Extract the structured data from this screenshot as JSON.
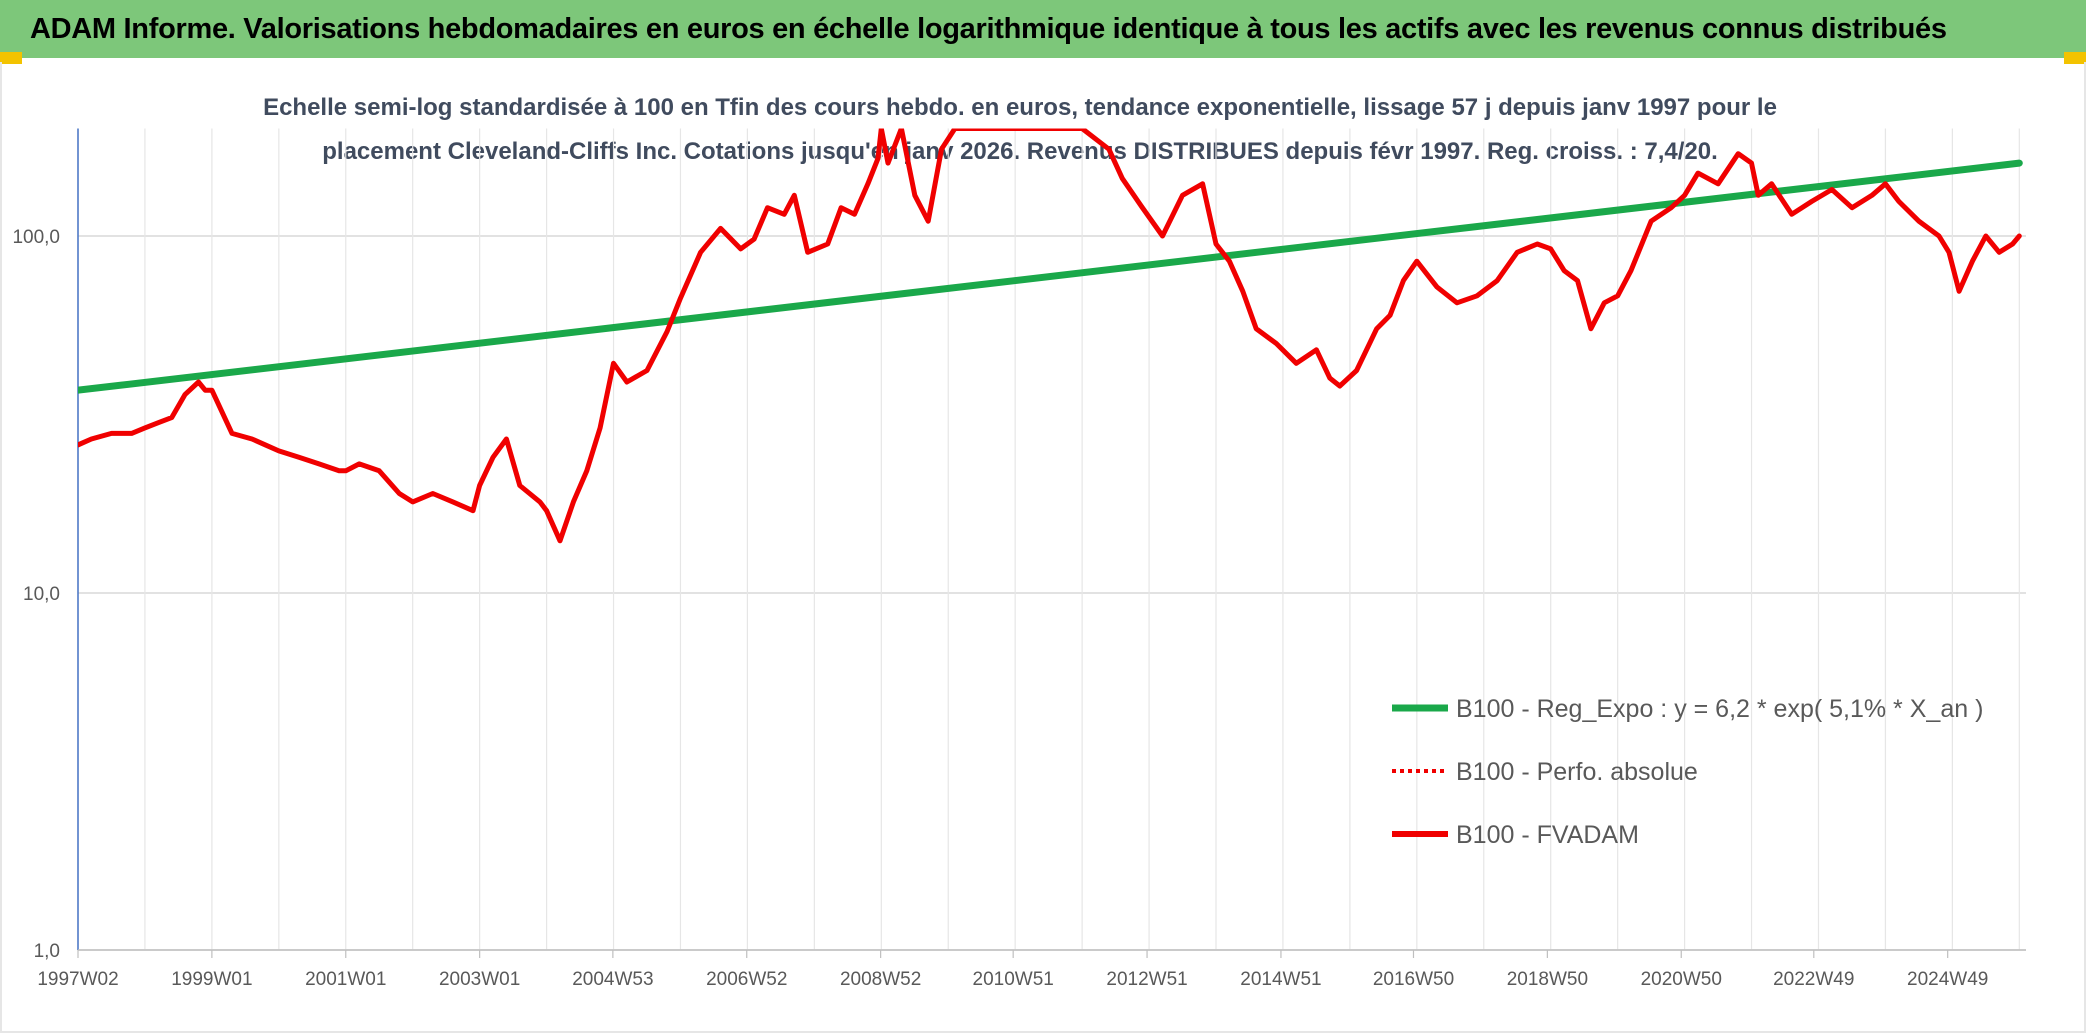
{
  "header": {
    "title": "ADAM Informe. Valorisations hebdomadaires en euros en échelle logarithmique identique à tous les actifs avec les revenus connus distribués"
  },
  "colors": {
    "header_bg": "#7dc77a",
    "accent_corner": "#f3c300",
    "trend": "#1aa84a",
    "fvadam": "#f00000",
    "grid": "#d9d9d9"
  },
  "chart_data": {
    "type": "line",
    "title_line1": "Echelle semi-log standardisée à 100 en Tfin des cours hebdo. en euros, tendance exponentielle, lissage 57 j depuis janv 1997 pour le",
    "title_line2": "placement Cleveland-Cliffs Inc. Cotations jusqu'en janv 2026. Revenus DISTRIBUES depuis févr 1997. Reg. croiss. : 7,4/20.",
    "y_scale": "log",
    "ylim": [
      1,
      200
    ],
    "xlim": [
      1997.0,
      2026.1
    ],
    "y_ticks": [
      {
        "value": 1,
        "label": "1,0"
      },
      {
        "value": 10,
        "label": "10,0"
      },
      {
        "value": 100,
        "label": "100,0"
      }
    ],
    "x_ticks": [
      {
        "value": 1997.0,
        "label": "1997W02"
      },
      {
        "value": 1999.0,
        "label": "1999W01"
      },
      {
        "value": 2001.0,
        "label": "2001W01"
      },
      {
        "value": 2003.0,
        "label": "2003W01"
      },
      {
        "value": 2004.99,
        "label": "2004W53"
      },
      {
        "value": 2006.99,
        "label": "2006W52"
      },
      {
        "value": 2008.99,
        "label": "2008W52"
      },
      {
        "value": 2010.97,
        "label": "2010W51"
      },
      {
        "value": 2012.97,
        "label": "2012W51"
      },
      {
        "value": 2014.97,
        "label": "2014W51"
      },
      {
        "value": 2016.95,
        "label": "2016W50"
      },
      {
        "value": 2018.95,
        "label": "2018W50"
      },
      {
        "value": 2020.95,
        "label": "2020W50"
      },
      {
        "value": 2022.93,
        "label": "2022W49"
      },
      {
        "value": 2024.93,
        "label": "2024W49"
      }
    ],
    "grid": true,
    "legend_position": "bottom-right",
    "legend": [
      {
        "key": "trend",
        "label": "B100 - Reg_Expo : y = 6,2 * exp( 5,1% *  X_an )",
        "style": "solid-green"
      },
      {
        "key": "perfo",
        "label": "B100 - Perfo. absolue",
        "style": "dotted-red"
      },
      {
        "key": "fvadam",
        "label": "B100 - FVADAM",
        "style": "solid-red"
      }
    ],
    "series": [
      {
        "key": "trend",
        "name": "B100 - Reg_Expo : y = 6,2 * exp( 5,1% *  X_an )",
        "x": [
          1997.0,
          2026.0
        ],
        "values": [
          37,
          160
        ]
      },
      {
        "key": "fvadam",
        "name": "B100 - FVADAM",
        "x": [
          1997.0,
          1997.2,
          1997.5,
          1997.8,
          1998.0,
          1998.2,
          1998.4,
          1998.6,
          1998.8,
          1998.9,
          1999.0,
          1999.3,
          1999.6,
          1999.8,
          2000.0,
          2000.3,
          2000.6,
          2000.9,
          2001.0,
          2001.2,
          2001.5,
          2001.8,
          2002.0,
          2002.3,
          2002.6,
          2002.9,
          2003.0,
          2003.2,
          2003.4,
          2003.6,
          2003.9,
          2004.0,
          2004.2,
          2004.4,
          2004.6,
          2004.8,
          2005.0,
          2005.2,
          2005.5,
          2005.8,
          2006.0,
          2006.3,
          2006.6,
          2006.9,
          2007.1,
          2007.3,
          2007.55,
          2007.7,
          2007.9,
          2008.2,
          2008.4,
          2008.6,
          2008.8,
          2008.95,
          2009.0,
          2009.1,
          2009.3,
          2009.5,
          2009.7,
          2009.9,
          2010.1,
          2011.5,
          2012.0,
          2012.4,
          2012.6,
          2012.9,
          2013.2,
          2013.5,
          2013.8,
          2014.0,
          2014.2,
          2014.4,
          2014.6,
          2014.9,
          2015.2,
          2015.5,
          2015.7,
          2015.85,
          2016.1,
          2016.4,
          2016.6,
          2016.8,
          2017.0,
          2017.3,
          2017.6,
          2017.9,
          2018.2,
          2018.5,
          2018.8,
          2019.0,
          2019.2,
          2019.4,
          2019.6,
          2019.8,
          2020.0,
          2020.2,
          2020.5,
          2020.8,
          2021.0,
          2021.2,
          2021.5,
          2021.8,
          2022.0,
          2022.1,
          2022.3,
          2022.6,
          2022.9,
          2023.2,
          2023.5,
          2023.8,
          2024.0,
          2024.2,
          2024.5,
          2024.8,
          2024.95,
          2025.1,
          2025.3,
          2025.5,
          2025.7,
          2025.9,
          2026.0
        ],
        "values": [
          26,
          27,
          28,
          28,
          29,
          30,
          31,
          36,
          39,
          37,
          37,
          28,
          27,
          26,
          25,
          24,
          23,
          22,
          22,
          23,
          22,
          19,
          18,
          19,
          18,
          17,
          20,
          24,
          27,
          20,
          18,
          17,
          14,
          18,
          22,
          29,
          44,
          39,
          42,
          54,
          67,
          90,
          105,
          92,
          98,
          120,
          115,
          130,
          90,
          95,
          120,
          115,
          140,
          165,
          200,
          160,
          200,
          130,
          110,
          175,
          200,
          200,
          200,
          175,
          145,
          120,
          100,
          130,
          140,
          95,
          85,
          70,
          55,
          50,
          44,
          48,
          40,
          38,
          42,
          55,
          60,
          75,
          85,
          72,
          65,
          68,
          75,
          90,
          95,
          92,
          80,
          75,
          55,
          65,
          68,
          80,
          110,
          120,
          130,
          150,
          140,
          170,
          160,
          130,
          140,
          115,
          125,
          135,
          120,
          130,
          140,
          125,
          110,
          100,
          90,
          70,
          85,
          100,
          90,
          95,
          100
        ]
      }
    ]
  }
}
